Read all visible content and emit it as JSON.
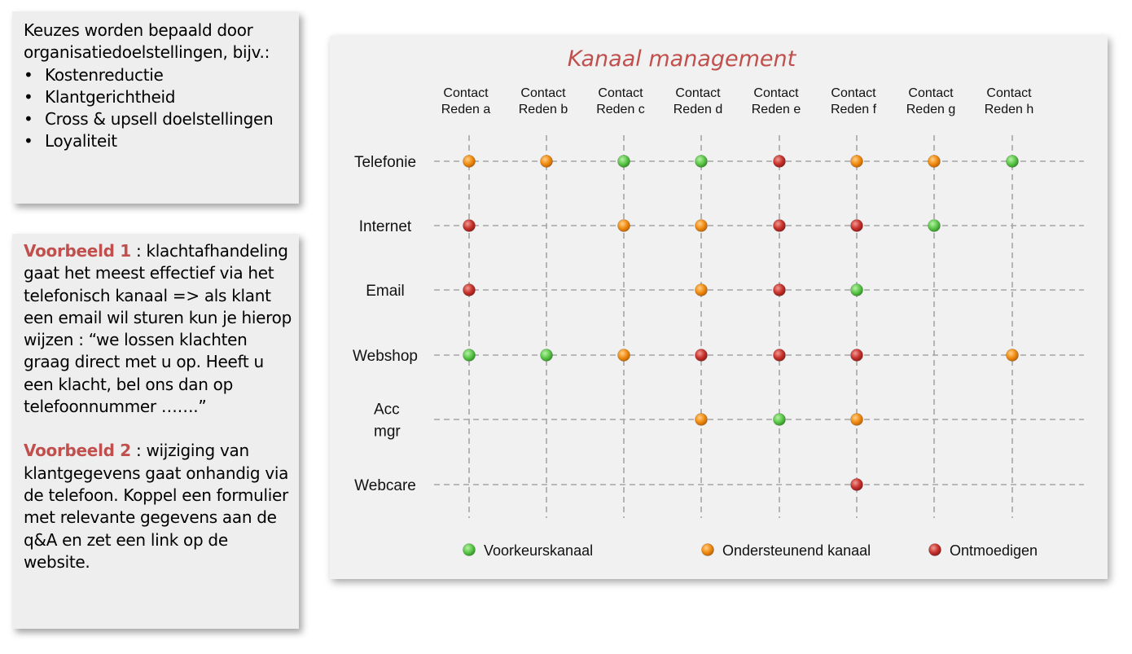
{
  "goals": {
    "intro": "Keuzes worden bepaald door organisatiedoelstellingen, bijv.:",
    "items": [
      "Kostenreductie",
      "Klantgerichtheid",
      "Cross & upsell doelstellingen",
      "Loyaliteit"
    ],
    "bullet": "•"
  },
  "examples": [
    {
      "title": "Voorbeeld 1",
      "text": ": klachtafhandeling gaat het meest effectief via het telefonisch kanaal => als klant een email wil sturen kun je hierop wijzen : “we lossen klachten graag direct met u op. Heeft u een klacht, bel ons dan op telefoonnummer …….”"
    },
    {
      "title": "Voorbeeld 2",
      "text": ": wijziging van klantgegevens gaat onhandig via de telefoon. Koppel een formulier met relevante gegevens aan de q&A en zet een link op de website."
    }
  ],
  "matrix": {
    "title": "Kanaal management",
    "columns": [
      [
        "Contact",
        "Reden a"
      ],
      [
        "Contact",
        "Reden b"
      ],
      [
        "Contact",
        "Reden c"
      ],
      [
        "Contact",
        "Reden d"
      ],
      [
        "Contact",
        "Reden e"
      ],
      [
        "Contact",
        "Reden f"
      ],
      [
        "Contact",
        "Reden g"
      ],
      [
        "Contact",
        "Reden h"
      ]
    ],
    "rows": [
      [
        "Telefonie"
      ],
      [
        "Internet"
      ],
      [
        "Email"
      ],
      [
        "Webshop"
      ],
      [
        "Acc",
        "mgr"
      ],
      [
        "Webcare"
      ]
    ],
    "cells": [
      [
        "O",
        "O",
        "G",
        "G",
        "R",
        "O",
        "O",
        "G"
      ],
      [
        "R",
        "",
        "O",
        "O",
        "R",
        "R",
        "G",
        ""
      ],
      [
        "R",
        "",
        "",
        "O",
        "R",
        "G",
        "",
        ""
      ],
      [
        "G",
        "G",
        "O",
        "R",
        "R",
        "R",
        "",
        "O"
      ],
      [
        "",
        "",
        "",
        "O",
        "G",
        "O",
        "",
        ""
      ],
      [
        "",
        "",
        "",
        "",
        "",
        "R",
        "",
        ""
      ]
    ],
    "legend": [
      {
        "key": "G",
        "label": "Voorkeurskanaal"
      },
      {
        "key": "O",
        "label": "Ondersteunend kanaal"
      },
      {
        "key": "R",
        "label": "Ontmoedigen"
      }
    ],
    "colors": {
      "G": "#5cc84a",
      "O": "#f28c12",
      "R": "#c8332e",
      "title": "#c0504d",
      "grid": "#a6a6a6"
    }
  }
}
